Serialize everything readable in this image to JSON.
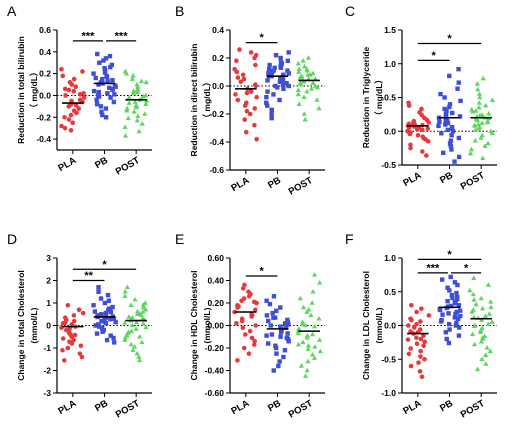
{
  "chart_data": [
    {
      "type": "scatter",
      "letter": "A",
      "ylabel": "Reduction in total bilirubin",
      "ylabel2": "（ mg/dL）",
      "categories": [
        "PLA",
        "PB",
        "POST"
      ],
      "yticks": [
        "0.6",
        "0.4",
        "0.2",
        "0.0",
        "-0.2",
        "-0.4"
      ],
      "ylim": [
        -0.5,
        0.6
      ],
      "means": [
        -0.07,
        0.11,
        -0.04
      ],
      "series": [
        {
          "values": [
            0.24,
            0.22,
            0.18,
            0.15,
            0.12,
            0.1,
            0.08,
            0.06,
            0.05,
            0.04,
            0.02,
            0.01,
            0.0,
            -0.02,
            -0.04,
            -0.05,
            -0.06,
            -0.08,
            -0.09,
            -0.1,
            -0.12,
            -0.14,
            -0.16,
            -0.18,
            -0.2,
            -0.22,
            -0.25,
            -0.28,
            -0.3,
            -0.32
          ]
        },
        {
          "values": [
            0.38,
            0.36,
            0.34,
            0.32,
            0.3,
            0.28,
            0.26,
            0.25,
            0.23,
            0.21,
            0.2,
            0.18,
            0.17,
            0.15,
            0.14,
            0.12,
            0.11,
            0.1,
            0.08,
            0.07,
            0.06,
            0.05,
            0.04,
            0.02,
            0.01,
            0.0,
            -0.02,
            -0.04,
            -0.06,
            -0.08,
            -0.1,
            -0.12,
            -0.15,
            -0.18,
            -0.2,
            0.16,
            0.13,
            0.09,
            0.03,
            -0.01
          ]
        },
        {
          "values": [
            0.22,
            0.2,
            0.18,
            0.15,
            0.12,
            0.1,
            0.08,
            0.06,
            0.05,
            0.03,
            0.02,
            0.0,
            -0.01,
            -0.02,
            -0.03,
            -0.04,
            -0.05,
            -0.06,
            -0.08,
            -0.09,
            -0.1,
            -0.11,
            -0.12,
            -0.14,
            -0.15,
            -0.17,
            -0.19,
            -0.21,
            -0.23,
            -0.26,
            -0.29,
            -0.33,
            -0.37,
            0.04,
            -0.07,
            0.13
          ]
        }
      ],
      "sig": [
        {
          "from": 0,
          "to": 1,
          "label": "***",
          "y": 0.5
        },
        {
          "from": 1,
          "to": 2,
          "label": "***",
          "y": 0.5
        }
      ]
    },
    {
      "type": "scatter",
      "letter": "B",
      "ylabel": "Reduction in direct bilirubin",
      "ylabel2": "（ mg/dL）",
      "categories": [
        "PLA",
        "PB",
        "POST"
      ],
      "yticks": [
        "0.4",
        "0.2",
        "0.0",
        "-0.2",
        "-0.4",
        "-0.6"
      ],
      "ylim": [
        -0.6,
        0.4
      ],
      "means": [
        -0.02,
        0.07,
        0.04
      ],
      "series": [
        {
          "values": [
            0.26,
            0.24,
            0.22,
            0.2,
            0.18,
            0.15,
            0.12,
            0.1,
            0.08,
            0.05,
            0.03,
            0.01,
            0.0,
            -0.02,
            -0.04,
            -0.06,
            -0.08,
            -0.1,
            -0.12,
            -0.14,
            -0.16,
            -0.18,
            -0.2,
            -0.24,
            -0.28,
            -0.33,
            -0.38,
            0.06,
            -0.05
          ]
        },
        {
          "values": [
            0.24,
            0.22,
            0.2,
            0.18,
            0.17,
            0.16,
            0.15,
            0.14,
            0.13,
            0.12,
            0.11,
            0.1,
            0.09,
            0.08,
            0.07,
            0.06,
            0.05,
            0.04,
            0.03,
            0.02,
            0.01,
            0.0,
            -0.01,
            -0.02,
            -0.04,
            -0.06,
            -0.08,
            -0.1,
            -0.12,
            -0.14,
            -0.17,
            -0.2,
            -0.23,
            0.13,
            0.09,
            0.05,
            0.03,
            0.0,
            0.11,
            0.07
          ]
        },
        {
          "values": [
            0.2,
            0.18,
            0.16,
            0.14,
            0.12,
            0.11,
            0.1,
            0.09,
            0.08,
            0.07,
            0.06,
            0.05,
            0.04,
            0.03,
            0.02,
            0.01,
            0.0,
            -0.01,
            -0.02,
            -0.04,
            -0.06,
            -0.08,
            -0.1,
            -0.13,
            -0.16,
            -0.2,
            -0.24,
            0.05,
            0.08,
            0.02,
            -0.03,
            0.12
          ]
        }
      ],
      "sig": [
        {
          "from": 0,
          "to": 1,
          "label": "*",
          "y": 0.31
        }
      ]
    },
    {
      "type": "scatter",
      "letter": "C",
      "ylabel": "Reduction in Triglyceride",
      "ylabel2": "（ mg/dL）",
      "categories": [
        "PLA",
        "PB",
        "POST"
      ],
      "yticks": [
        "1.5",
        "1.0",
        "0.5",
        "0.0",
        "-0.5"
      ],
      "ylim": [
        -0.5,
        1.5
      ],
      "means": [
        0.08,
        0.2,
        0.2
      ],
      "series": [
        {
          "values": [
            0.42,
            0.38,
            0.33,
            0.28,
            0.24,
            0.2,
            0.17,
            0.15,
            0.13,
            0.12,
            0.11,
            0.1,
            0.09,
            0.08,
            0.07,
            0.06,
            0.05,
            0.04,
            0.03,
            0.02,
            0.01,
            0.0,
            -0.02,
            -0.04,
            -0.06,
            -0.08,
            -0.1,
            -0.12,
            -0.15,
            -0.2,
            -0.25,
            -0.3,
            -0.36,
            0.1,
            0.08
          ]
        },
        {
          "values": [
            0.92,
            0.82,
            0.72,
            0.63,
            0.55,
            0.5,
            0.45,
            0.4,
            0.36,
            0.33,
            0.3,
            0.27,
            0.24,
            0.22,
            0.2,
            0.18,
            0.16,
            0.14,
            0.12,
            0.1,
            0.08,
            0.06,
            0.04,
            0.02,
            0.0,
            -0.03,
            -0.06,
            -0.1,
            -0.14,
            -0.18,
            -0.22,
            -0.27,
            -0.32,
            -0.38,
            -0.45,
            0.25,
            0.15,
            0.05
          ]
        },
        {
          "values": [
            0.78,
            0.7,
            0.62,
            0.55,
            0.5,
            0.46,
            0.42,
            0.38,
            0.35,
            0.32,
            0.29,
            0.26,
            0.24,
            0.22,
            0.2,
            0.18,
            0.16,
            0.14,
            0.12,
            0.1,
            0.08,
            0.06,
            0.04,
            0.02,
            0.0,
            -0.03,
            -0.06,
            -0.1,
            -0.14,
            -0.18,
            -0.22,
            -0.27,
            -0.33,
            -0.4,
            0.3,
            0.19,
            0.09,
            0.23,
            0.13
          ]
        }
      ],
      "sig": [
        {
          "from": 0,
          "to": 1,
          "label": "*",
          "y": 1.05
        },
        {
          "from": 0,
          "to": 2,
          "label": "*",
          "y": 1.3
        }
      ]
    },
    {
      "type": "scatter",
      "letter": "D",
      "ylabel": "Change in total Cholesterol",
      "ylabel2": "(mmol/L)",
      "categories": [
        "PLA",
        "PB",
        "POST"
      ],
      "yticks": [
        "3",
        "2",
        "1",
        "0",
        "-1",
        "-2",
        "-3"
      ],
      "ylim": [
        -3,
        3
      ],
      "means": [
        -0.05,
        0.38,
        0.22
      ],
      "series": [
        {
          "values": [
            0.9,
            0.7,
            0.55,
            0.45,
            0.35,
            0.25,
            0.2,
            0.12,
            0.05,
            0.0,
            -0.05,
            -0.1,
            -0.15,
            -0.2,
            -0.25,
            -0.3,
            -0.35,
            -0.42,
            -0.5,
            -0.58,
            -0.65,
            -0.72,
            -0.8,
            -0.9,
            -1.0,
            -1.1,
            -1.25,
            -1.4,
            -1.55,
            0.1,
            -0.4
          ]
        },
        {
          "values": [
            1.7,
            1.5,
            1.35,
            1.2,
            1.1,
            1.0,
            0.9,
            0.82,
            0.75,
            0.68,
            0.62,
            0.56,
            0.5,
            0.45,
            0.4,
            0.35,
            0.3,
            0.25,
            0.2,
            0.15,
            0.1,
            0.05,
            0.0,
            -0.05,
            -0.12,
            -0.2,
            -0.28,
            -0.36,
            -0.45,
            -0.55,
            -0.65,
            -0.75,
            0.48,
            0.38,
            0.28,
            0.6,
            0.72,
            0.18
          ]
        },
        {
          "values": [
            1.7,
            1.5,
            1.3,
            1.15,
            1.0,
            0.9,
            0.8,
            0.7,
            0.6,
            0.52,
            0.45,
            0.38,
            0.3,
            0.22,
            0.15,
            0.08,
            0.0,
            -0.08,
            -0.16,
            -0.25,
            -0.35,
            -0.45,
            -0.55,
            -0.65,
            -0.75,
            -0.85,
            -0.95,
            -1.1,
            -1.25,
            -1.4,
            -1.55,
            0.35,
            0.25,
            0.5,
            -0.3,
            0.62,
            0.12,
            -0.5,
            0.92
          ]
        }
      ],
      "sig": [
        {
          "from": 0,
          "to": 1,
          "label": "**",
          "y": 2.0
        },
        {
          "from": 0,
          "to": 2,
          "label": "*",
          "y": 2.5
        }
      ]
    },
    {
      "type": "scatter",
      "letter": "E",
      "ylabel": "Change in HDL Cholesterol",
      "ylabel2": "(mmol/L)",
      "categories": [
        "PLA",
        "PB",
        "POST"
      ],
      "yticks": [
        "0.60",
        "0.40",
        "0.20",
        "0.00",
        "-0.20",
        "-0.40",
        "-0.60"
      ],
      "ylim": [
        -0.6,
        0.6
      ],
      "means": [
        0.12,
        -0.03,
        -0.05
      ],
      "series": [
        {
          "values": [
            0.36,
            0.33,
            0.3,
            0.28,
            0.26,
            0.24,
            0.22,
            0.2,
            0.18,
            0.16,
            0.14,
            0.12,
            0.1,
            0.08,
            0.06,
            0.04,
            0.02,
            0.0,
            -0.02,
            -0.05,
            -0.08,
            -0.11,
            -0.14,
            -0.17,
            -0.2,
            -0.25,
            -0.31,
            0.17,
            0.09,
            0.21
          ]
        },
        {
          "values": [
            0.26,
            0.22,
            0.19,
            0.16,
            0.13,
            0.11,
            0.09,
            0.07,
            0.05,
            0.03,
            0.02,
            0.01,
            0.0,
            -0.01,
            -0.02,
            -0.03,
            -0.04,
            -0.05,
            -0.06,
            -0.07,
            -0.08,
            -0.09,
            -0.1,
            -0.12,
            -0.14,
            -0.16,
            -0.18,
            -0.2,
            -0.22,
            -0.25,
            -0.28,
            -0.32,
            -0.36,
            -0.4,
            0.04,
            -0.11,
            0.07
          ]
        },
        {
          "values": [
            0.45,
            0.38,
            0.3,
            0.24,
            0.2,
            0.16,
            0.12,
            0.09,
            0.06,
            0.03,
            0.01,
            -0.01,
            -0.03,
            -0.05,
            -0.07,
            -0.09,
            -0.11,
            -0.13,
            -0.15,
            -0.17,
            -0.19,
            -0.21,
            -0.23,
            -0.26,
            -0.29,
            -0.32,
            -0.36,
            -0.4,
            -0.45,
            0.0,
            -0.08,
            0.14,
            -0.18
          ]
        }
      ],
      "sig": [
        {
          "from": 0,
          "to": 1,
          "label": "*",
          "y": 0.44
        }
      ]
    },
    {
      "type": "scatter",
      "letter": "F",
      "ylabel": "Change in LDL Cholesterol",
      "ylabel2": "(mmol/L)",
      "categories": [
        "PLA",
        "PB",
        "POST"
      ],
      "yticks": [
        "1.0",
        "0.5",
        "0.0",
        "-0.5",
        "-1.0"
      ],
      "ylim": [
        -1.0,
        1.0
      ],
      "means": [
        -0.12,
        0.27,
        0.1
      ],
      "series": [
        {
          "values": [
            0.3,
            0.25,
            0.2,
            0.15,
            0.1,
            0.06,
            0.02,
            0.0,
            -0.03,
            -0.06,
            -0.09,
            -0.12,
            -0.15,
            -0.18,
            -0.21,
            -0.24,
            -0.27,
            -0.3,
            -0.34,
            -0.38,
            -0.42,
            -0.46,
            -0.5,
            -0.55,
            -0.6,
            -0.68,
            -0.76,
            -0.1,
            -0.2,
            0.08
          ]
        },
        {
          "values": [
            0.72,
            0.68,
            0.64,
            0.6,
            0.56,
            0.52,
            0.48,
            0.45,
            0.42,
            0.39,
            0.36,
            0.33,
            0.3,
            0.28,
            0.26,
            0.24,
            0.22,
            0.2,
            0.18,
            0.16,
            0.14,
            0.12,
            0.1,
            0.08,
            0.06,
            0.04,
            0.02,
            0.0,
            -0.03,
            -0.06,
            -0.1,
            -0.15,
            -0.2,
            -0.26,
            0.35,
            0.29,
            0.23,
            0.41,
            0.17
          ]
        },
        {
          "values": [
            0.7,
            0.6,
            0.52,
            0.46,
            0.4,
            0.35,
            0.31,
            0.27,
            0.23,
            0.2,
            0.17,
            0.14,
            0.11,
            0.08,
            0.05,
            0.02,
            -0.01,
            -0.04,
            -0.07,
            -0.1,
            -0.13,
            -0.16,
            -0.2,
            -0.24,
            -0.28,
            -0.33,
            -0.38,
            -0.44,
            -0.5,
            -0.57,
            -0.65,
            0.12,
            0.25,
            0.0,
            0.38,
            -0.18
          ]
        }
      ],
      "sig": [
        {
          "from": 0,
          "to": 1,
          "label": "***",
          "y": 0.78
        },
        {
          "from": 1,
          "to": 2,
          "label": "*",
          "y": 0.78
        },
        {
          "from": 0,
          "to": 2,
          "label": "*",
          "y": 0.98
        }
      ]
    }
  ],
  "colors": {
    "PLA": "#e8383b",
    "PB": "#3f4ed6",
    "POST": "#5cd65c",
    "mean": "#000000"
  },
  "markers": {
    "PLA": "circle",
    "PB": "square",
    "POST": "triangle"
  }
}
